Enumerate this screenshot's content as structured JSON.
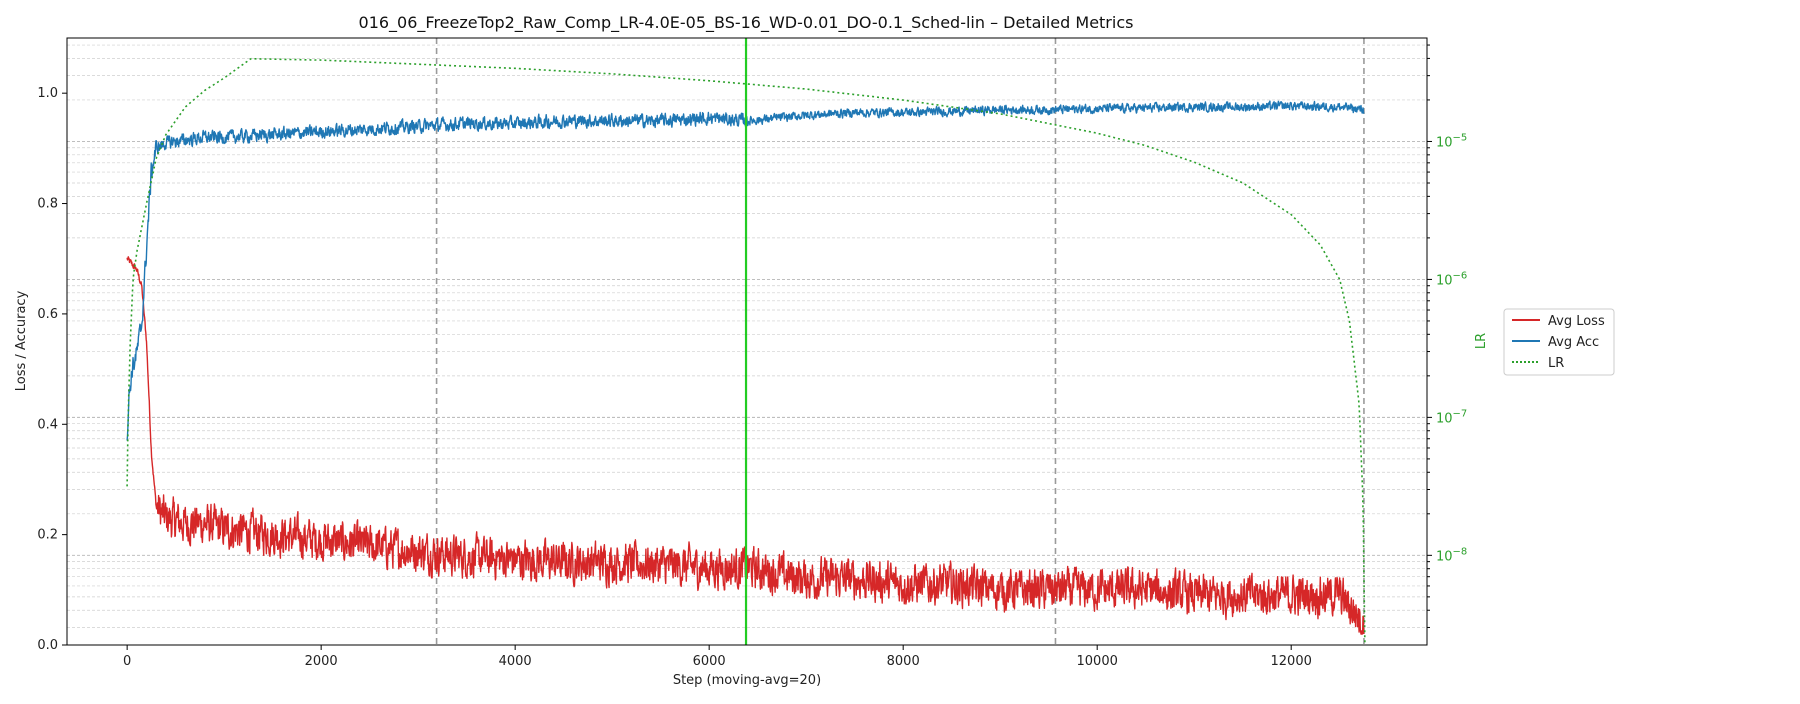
{
  "chart_data": {
    "type": "line",
    "title": "016_06_FreezeTop2_Raw_Comp_LR-4.0E-05_BS-16_WD-0.01_DO-0.1_Sched-lin – Detailed Metrics",
    "xlabel": "Step (moving-avg=20)",
    "ylabel": "Loss / Accuracy",
    "y2label": "LR",
    "xlim": [
      -620,
      13400
    ],
    "ylim": [
      0,
      1.1
    ],
    "y2lim_log10": [
      -8.65,
      -4.25
    ],
    "y2scale": "log",
    "x_ticks": [
      0,
      2000,
      4000,
      6000,
      8000,
      10000,
      12000
    ],
    "x_tick_labels": [
      "0",
      "2000",
      "4000",
      "6000",
      "8000",
      "10000",
      "12000"
    ],
    "y_ticks": [
      0.0,
      0.2,
      0.4,
      0.6,
      0.8,
      1.0
    ],
    "y_tick_labels": [
      "0.0",
      "0.2",
      "0.4",
      "0.6",
      "0.8",
      "1.0"
    ],
    "y2_ticks": [
      -5,
      -6,
      -7,
      -8
    ],
    "y2_tick_base": "10",
    "y2_tick_exponents": [
      "−5",
      "−6",
      "−7",
      "−8"
    ],
    "grid": true,
    "legend_position": "right",
    "epoch_boundaries": [
      3190,
      9570,
      12750
    ],
    "highlight_step": 6380,
    "series": [
      {
        "name": "Avg Loss",
        "color": "#d62728",
        "style": "solid",
        "axis": "left",
        "x": [
          0,
          50,
          100,
          150,
          200,
          250,
          300,
          400,
          600,
          800,
          1000,
          1500,
          2000,
          2500,
          3000,
          3500,
          4000,
          4500,
          5000,
          5500,
          6000,
          6400,
          7000,
          7500,
          8000,
          8500,
          9000,
          9500,
          10000,
          10500,
          11000,
          11500,
          12000,
          12500,
          12750
        ],
        "values": [
          0.7,
          0.69,
          0.68,
          0.65,
          0.55,
          0.35,
          0.25,
          0.23,
          0.22,
          0.22,
          0.21,
          0.2,
          0.19,
          0.18,
          0.17,
          0.16,
          0.155,
          0.15,
          0.15,
          0.145,
          0.14,
          0.14,
          0.12,
          0.12,
          0.11,
          0.11,
          0.1,
          0.1,
          0.1,
          0.1,
          0.09,
          0.09,
          0.09,
          0.09,
          0.04
        ]
      },
      {
        "name": "Avg Acc",
        "color": "#1f77b4",
        "style": "solid",
        "axis": "left",
        "x": [
          0,
          20,
          50,
          100,
          150,
          200,
          250,
          300,
          400,
          600,
          800,
          1000,
          1500,
          2000,
          2500,
          3000,
          3500,
          4000,
          4500,
          5000,
          5500,
          6000,
          6400,
          7000,
          7500,
          8000,
          8500,
          9000,
          9500,
          10000,
          10500,
          11000,
          11500,
          12000,
          12500,
          12750
        ],
        "values": [
          0.38,
          0.45,
          0.5,
          0.53,
          0.58,
          0.72,
          0.86,
          0.9,
          0.91,
          0.915,
          0.92,
          0.92,
          0.925,
          0.93,
          0.935,
          0.94,
          0.945,
          0.945,
          0.95,
          0.95,
          0.95,
          0.955,
          0.95,
          0.96,
          0.965,
          0.965,
          0.967,
          0.97,
          0.97,
          0.972,
          0.973,
          0.975,
          0.975,
          0.977,
          0.975,
          0.97
        ]
      },
      {
        "name": "LR",
        "color": "#2ca02c",
        "style": "dotted",
        "axis": "right",
        "note_values_are_log10": true,
        "x": [
          0,
          10,
          30,
          60,
          100,
          200,
          300,
          400,
          600,
          800,
          1000,
          1276,
          2000,
          3000,
          4000,
          5000,
          6000,
          7000,
          8000,
          9000,
          10000,
          10500,
          11000,
          11500,
          12000,
          12300,
          12500,
          12600,
          12700,
          12740,
          12760
        ],
        "values": [
          -7.5,
          -7.0,
          -6.5,
          -6.0,
          -5.8,
          -5.45,
          -5.12,
          -4.95,
          -4.75,
          -4.63,
          -4.54,
          -4.4,
          -4.41,
          -4.44,
          -4.47,
          -4.51,
          -4.56,
          -4.62,
          -4.7,
          -4.8,
          -4.94,
          -5.03,
          -5.15,
          -5.3,
          -5.53,
          -5.75,
          -6.0,
          -6.3,
          -6.9,
          -7.6,
          -8.65
        ]
      }
    ]
  }
}
